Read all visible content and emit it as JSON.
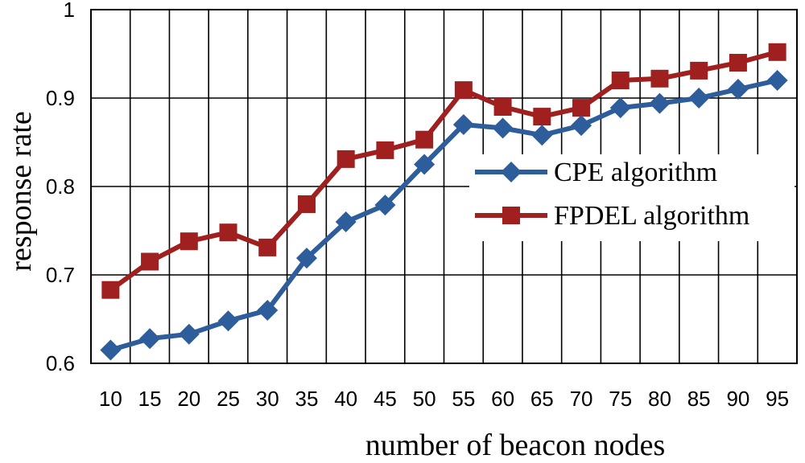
{
  "chart_data": {
    "type": "line",
    "x": [
      10,
      15,
      20,
      25,
      30,
      35,
      40,
      45,
      50,
      55,
      60,
      65,
      70,
      75,
      80,
      85,
      90,
      95
    ],
    "xlabel": "number of beacon nodes",
    "ylabel": "response rate",
    "ylim": [
      0.6,
      1.0
    ],
    "yticks": [
      "0.6",
      "0.7",
      "0.8",
      "0.9",
      "1"
    ],
    "xticks": [
      "10",
      "15",
      "20",
      "25",
      "30",
      "35",
      "40",
      "45",
      "50",
      "55",
      "60",
      "65",
      "70",
      "75",
      "80",
      "85",
      "90",
      "95"
    ],
    "grid": true,
    "legend_position": "right",
    "series": [
      {
        "name": "CPE algorithm",
        "color": "#2e5d9c",
        "marker": "diamond",
        "values": [
          0.615,
          0.628,
          0.633,
          0.648,
          0.66,
          0.719,
          0.76,
          0.779,
          0.825,
          0.87,
          0.866,
          0.858,
          0.869,
          0.889,
          0.894,
          0.9,
          0.91,
          0.92
        ]
      },
      {
        "name": "FPDEL algorithm",
        "color": "#a01f1f",
        "marker": "square",
        "values": [
          0.683,
          0.715,
          0.738,
          0.748,
          0.731,
          0.78,
          0.831,
          0.841,
          0.853,
          0.909,
          0.89,
          0.879,
          0.889,
          0.92,
          0.922,
          0.931,
          0.94,
          0.952
        ]
      }
    ]
  }
}
